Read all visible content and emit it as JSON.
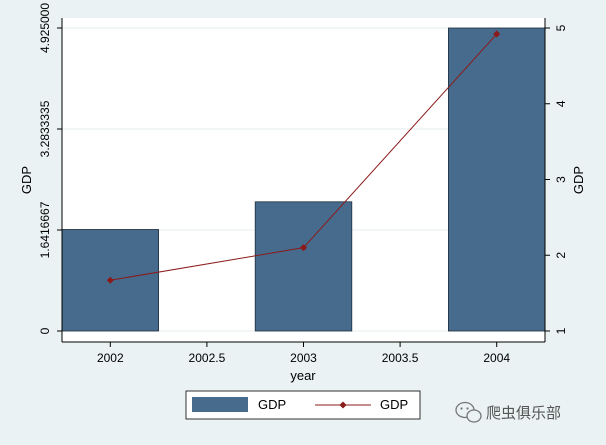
{
  "chart_data": {
    "type": "bar",
    "x_axis": {
      "label": "year",
      "range": [
        2001.75,
        2004.25
      ],
      "ticks": [
        "2002",
        "2002.5",
        "2003",
        "2003.5",
        "2004"
      ],
      "tick_values": [
        2002,
        2002.5,
        2003,
        2003.5,
        2004
      ]
    },
    "y_left": {
      "label": "GDP",
      "range": [
        0,
        4.925
      ],
      "ticks": [
        "0",
        "1.6416667",
        "3.2833335",
        "4.925000"
      ],
      "tick_values": [
        0,
        1.6416667,
        3.2833335,
        4.925
      ]
    },
    "y_right": {
      "label": "GDP",
      "range": [
        1,
        5
      ],
      "ticks": [
        "1",
        "2",
        "3",
        "4",
        "5"
      ],
      "tick_values": [
        1,
        2,
        3,
        4,
        5
      ]
    },
    "series": [
      {
        "name": "GDP",
        "type": "bar",
        "axis": "left",
        "color": "#466b8d",
        "x": [
          2002,
          2003,
          2004
        ],
        "values": [
          1.65,
          2.1,
          4.925
        ]
      },
      {
        "name": "GDP",
        "type": "line",
        "axis": "right",
        "color": "#8b1a1a",
        "x": [
          2002,
          2003,
          2004
        ],
        "values": [
          1.67,
          2.1,
          4.92
        ]
      }
    ],
    "grid": true,
    "legend": "bottom"
  },
  "watermark": {
    "text": "爬虫俱乐部",
    "icon": "wechat-icon"
  }
}
